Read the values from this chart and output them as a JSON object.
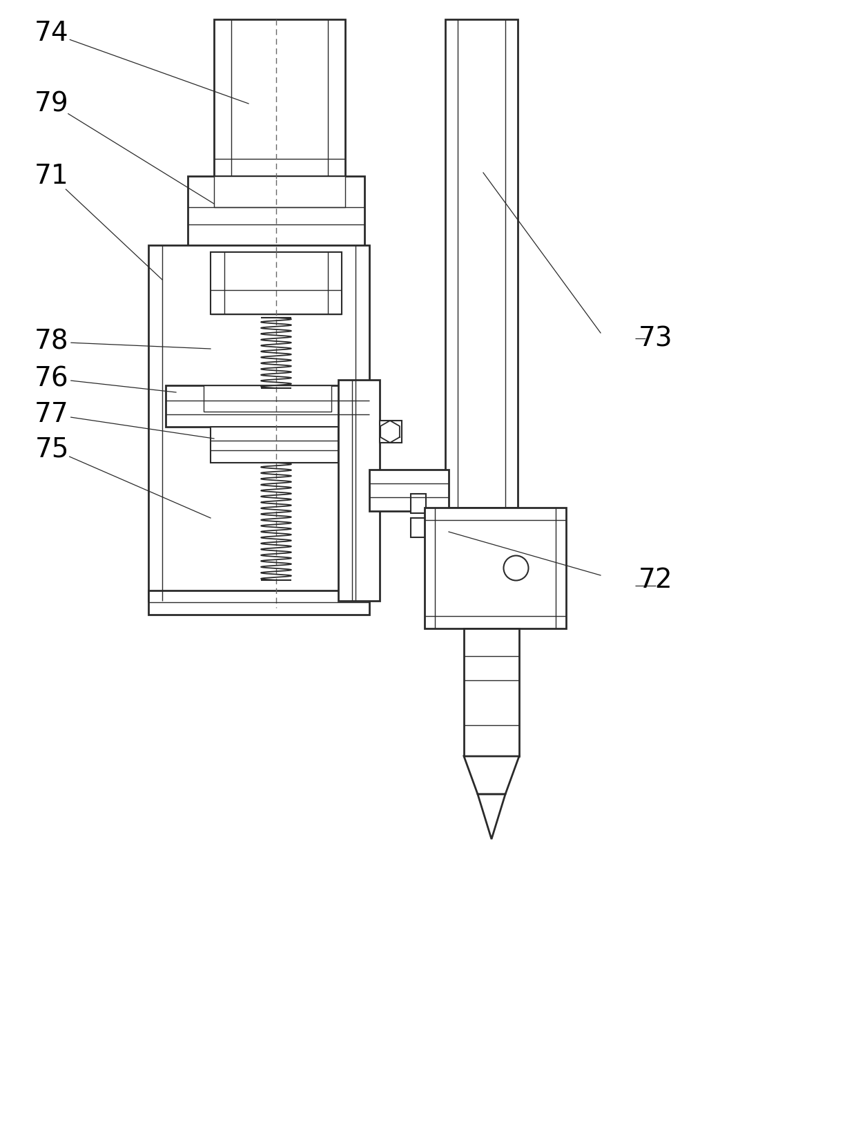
{
  "bg_color": "#ffffff",
  "line_color": "#2a2a2a",
  "dashed_color": "#555555",
  "label_fontsize": 28,
  "figsize": [
    12.4,
    16.55
  ],
  "dpi": 100
}
